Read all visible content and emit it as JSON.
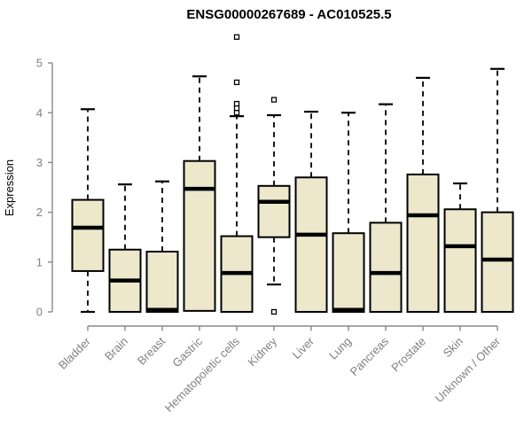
{
  "chart_data": {
    "type": "boxplot",
    "title": "ENSG00000267689 - AC010525.5",
    "ylabel": "Expression",
    "xlabel": "",
    "ylim": [
      0,
      5
    ],
    "yticks": [
      0,
      1,
      2,
      3,
      4,
      5
    ],
    "grid": false,
    "legend": "none",
    "xtick_rotation_deg": 45,
    "categories": [
      "Bladder",
      "Brain",
      "Breast",
      "Gastric",
      "Hematopoietic cells",
      "Kidney",
      "Liver",
      "Lung",
      "Pancreas",
      "Prostate",
      "Skin",
      "Unknown / Other"
    ],
    "series": [
      {
        "category": "Bladder",
        "whisker_low": 0.0,
        "q1": 0.82,
        "median": 1.69,
        "q3": 2.25,
        "whisker_high": 4.07,
        "outliers": []
      },
      {
        "category": "Brain",
        "whisker_low": 0.0,
        "q1": 0.0,
        "median": 0.63,
        "q3": 1.25,
        "whisker_high": 2.56,
        "outliers": []
      },
      {
        "category": "Breast",
        "whisker_low": 0.0,
        "q1": 0.0,
        "median": 0.04,
        "q3": 1.21,
        "whisker_high": 2.62,
        "outliers": []
      },
      {
        "category": "Gastric",
        "whisker_low": 0.02,
        "q1": 0.02,
        "median": 2.47,
        "q3": 3.03,
        "whisker_high": 4.73,
        "outliers": []
      },
      {
        "category": "Hematopoietic cells",
        "whisker_low": 0.0,
        "q1": 0.0,
        "median": 0.78,
        "q3": 1.52,
        "whisker_high": 3.93,
        "outliers": [
          5.52,
          4.61,
          4.18,
          4.09,
          4.0
        ]
      },
      {
        "category": "Kidney",
        "whisker_low": 0.55,
        "q1": 1.5,
        "median": 2.21,
        "q3": 2.53,
        "whisker_high": 3.95,
        "outliers": [
          4.26,
          0.0
        ]
      },
      {
        "category": "Liver",
        "whisker_low": 0.0,
        "q1": 0.0,
        "median": 1.55,
        "q3": 2.7,
        "whisker_high": 4.02,
        "outliers": []
      },
      {
        "category": "Lung",
        "whisker_low": 0.0,
        "q1": 0.0,
        "median": 0.04,
        "q3": 1.58,
        "whisker_high": 4.0,
        "outliers": []
      },
      {
        "category": "Pancreas",
        "whisker_low": 0.0,
        "q1": 0.0,
        "median": 0.78,
        "q3": 1.79,
        "whisker_high": 4.17,
        "outliers": []
      },
      {
        "category": "Prostate",
        "whisker_low": 0.0,
        "q1": 0.0,
        "median": 1.94,
        "q3": 2.76,
        "whisker_high": 4.7,
        "outliers": []
      },
      {
        "category": "Skin",
        "whisker_low": 0.0,
        "q1": 0.0,
        "median": 1.32,
        "q3": 2.06,
        "whisker_high": 2.58,
        "outliers": []
      },
      {
        "category": "Unknown / Other",
        "whisker_low": 0.0,
        "q1": 0.0,
        "median": 1.05,
        "q3": 2.0,
        "whisker_high": 4.88,
        "outliers": []
      }
    ],
    "colors": {
      "background": "#ffffff",
      "box_fill": "#EDE8CC",
      "box_border": "#000000",
      "median": "#000000",
      "whisker": "#000000",
      "outlier_stroke": "#000000",
      "outlier_fill": "#ffffff",
      "axis": "#888888",
      "tick_label": "#808080",
      "title": "#000000"
    }
  }
}
